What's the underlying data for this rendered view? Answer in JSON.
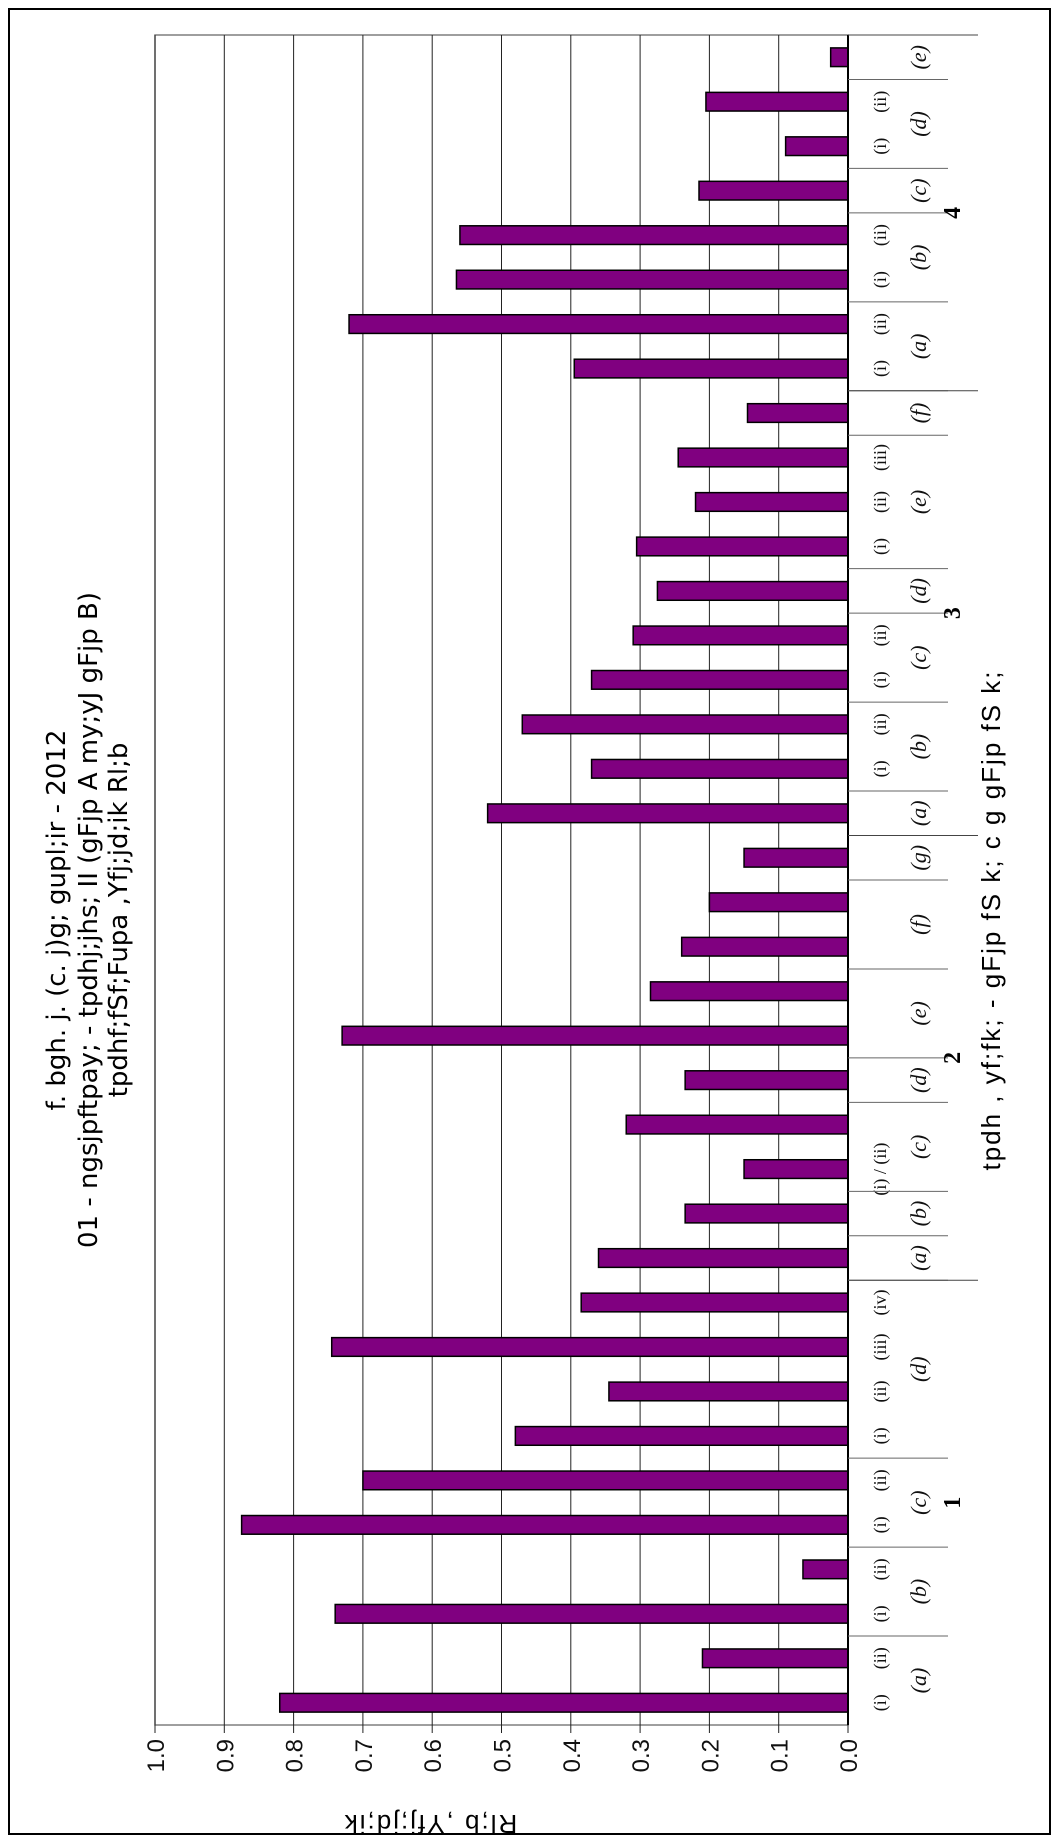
{
  "chart_data": {
    "type": "bar",
    "orientation": "horizontal",
    "title_lines": [
      "f. bgh. j. (c. j)g; gupl;ir - 2012",
      "01 - ngsjpftpay; - tpdhj;jhs; II (gFjp A my;yJ gFjp B)",
      "tpdhf;fSf;Fupa ,Yfj;jd;ik Rl;b"
    ],
    "xlabel": "tpdh , yf;fk; - gFjp fS k; c g gFjp fS k;",
    "ylabel": "Rl;b ,Yfj;jd;ik",
    "ylim": [
      0,
      1
    ],
    "yticks": [
      "0.0",
      "0.1",
      "0.2",
      "0.3",
      "0.4",
      "0.5",
      "0.6",
      "0.7",
      "0.8",
      "0.9",
      "1.0"
    ],
    "grid": true,
    "bar_color": "#800080",
    "categories": [
      {
        "q": "1",
        "part": "(a)",
        "sub": "(i)",
        "value": 0.82
      },
      {
        "q": "1",
        "part": "(a)",
        "sub": "(ii)",
        "value": 0.21
      },
      {
        "q": "1",
        "part": "(b)",
        "sub": "(i)",
        "value": 0.74
      },
      {
        "q": "1",
        "part": "(b)",
        "sub": "(ii)",
        "value": 0.065
      },
      {
        "q": "1",
        "part": "(c)",
        "sub": "(i)",
        "value": 0.875
      },
      {
        "q": "1",
        "part": "(c)",
        "sub": "(ii)",
        "value": 0.7
      },
      {
        "q": "1",
        "part": "(d)",
        "sub": "(i)",
        "value": 0.48
      },
      {
        "q": "1",
        "part": "(d)",
        "sub": "(ii)",
        "value": 0.345
      },
      {
        "q": "1",
        "part": "(d)",
        "sub": "(iii)",
        "value": 0.745
      },
      {
        "q": "1",
        "part": "(d)",
        "sub": "(iv)",
        "value": 0.385
      },
      {
        "q": "2",
        "part": "(a)",
        "sub": "",
        "value": 0.36
      },
      {
        "q": "2",
        "part": "(b)",
        "sub": "",
        "value": 0.235
      },
      {
        "q": "2",
        "part": "(c)",
        "sub": "(i) / (ii)",
        "value": 0.15
      },
      {
        "q": "2",
        "part": "(c)",
        "sub": "",
        "value": 0.32
      },
      {
        "q": "2",
        "part": "(d)",
        "sub": "",
        "value": 0.235
      },
      {
        "q": "2",
        "part": "(e)",
        "sub": "",
        "value": 0.73
      },
      {
        "q": "2",
        "part": "(e)",
        "sub": "",
        "value": 0.285
      },
      {
        "q": "2",
        "part": "(f)",
        "sub": "",
        "value": 0.24
      },
      {
        "q": "2",
        "part": "(f)",
        "sub": "",
        "value": 0.2
      },
      {
        "q": "2",
        "part": "(g)",
        "sub": "",
        "value": 0.15
      },
      {
        "q": "3",
        "part": "(a)",
        "sub": "",
        "value": 0.52
      },
      {
        "q": "3",
        "part": "(b)",
        "sub": "(i)",
        "value": 0.37
      },
      {
        "q": "3",
        "part": "(b)",
        "sub": "(ii)",
        "value": 0.47
      },
      {
        "q": "3",
        "part": "(c)",
        "sub": "(i)",
        "value": 0.37
      },
      {
        "q": "3",
        "part": "(c)",
        "sub": "(ii)",
        "value": 0.31
      },
      {
        "q": "3",
        "part": "(d)",
        "sub": "",
        "value": 0.275
      },
      {
        "q": "3",
        "part": "(e)",
        "sub": "(i)",
        "value": 0.305
      },
      {
        "q": "3",
        "part": "(e)",
        "sub": "(ii)",
        "value": 0.22
      },
      {
        "q": "3",
        "part": "(e)",
        "sub": "(iii)",
        "value": 0.245
      },
      {
        "q": "3",
        "part": "(f)",
        "sub": "",
        "value": 0.145
      },
      {
        "q": "4",
        "part": "(a)",
        "sub": "(i)",
        "value": 0.395
      },
      {
        "q": "4",
        "part": "(a)",
        "sub": "(ii)",
        "value": 0.72
      },
      {
        "q": "4",
        "part": "(b)",
        "sub": "(i)",
        "value": 0.565
      },
      {
        "q": "4",
        "part": "(b)",
        "sub": "(ii)",
        "value": 0.56
      },
      {
        "q": "4",
        "part": "(c)",
        "sub": "",
        "value": 0.215
      },
      {
        "q": "4",
        "part": "(d)",
        "sub": "(i)",
        "value": 0.09
      },
      {
        "q": "4",
        "part": "(d)",
        "sub": "(ii)",
        "value": 0.205
      },
      {
        "q": "4",
        "part": "(e)",
        "sub": "",
        "value": 0.025
      }
    ]
  }
}
